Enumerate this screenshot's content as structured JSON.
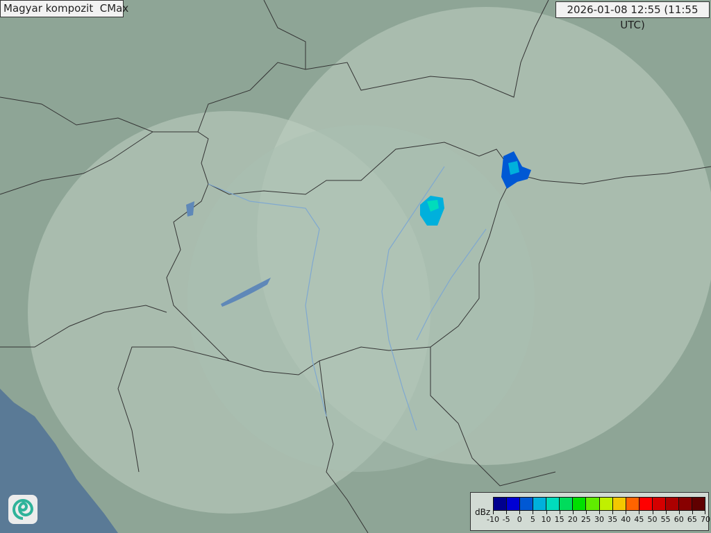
{
  "title": "Magyar kompozit  CMax",
  "timestamp": "2026-01-08 12:55 (11:55 UTC)",
  "legend": {
    "unit": "dBz",
    "labels": [
      "-10",
      "-5",
      "0",
      "5",
      "10",
      "15",
      "20",
      "25",
      "30",
      "35",
      "40",
      "45",
      "50",
      "55",
      "60",
      "65",
      "70"
    ],
    "colors": [
      "#00008f",
      "#0000d4",
      "#0058d4",
      "#00b0dc",
      "#00dcbc",
      "#00dc5c",
      "#00e000",
      "#60ec00",
      "#c0f000",
      "#f4c800",
      "#ff6400",
      "#ff0000",
      "#d40000",
      "#ac0000",
      "#880000",
      "#600000"
    ]
  },
  "logo": {
    "icon": "swirl-logo-icon"
  },
  "map": {
    "background": "#8ea596",
    "radar_coverage": "#c9d6cc",
    "sea": "#5a7a96",
    "rivers": "#7fa8d0"
  }
}
